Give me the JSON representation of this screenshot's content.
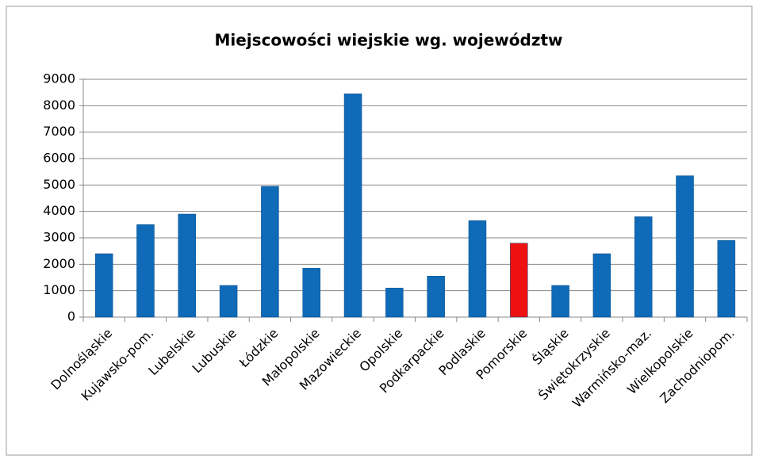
{
  "chart_data": {
    "type": "bar",
    "title": "Miejscowości wiejskie wg. województw",
    "categories": [
      "Dolnośląskie",
      "Kujawsko-pom.",
      "Lubelskie",
      "Lubuskie",
      "Łódzkie",
      "Małopolskie",
      "Mazowieckie",
      "Opolskie",
      "Podkarpackie",
      "Podlaskie",
      "Pomorskie",
      "Śląskie",
      "Świętokrzyskie",
      "Warmińsko-maz.",
      "Wielkopolskie",
      "Zachodniopom."
    ],
    "values": [
      2400,
      3500,
      3900,
      1200,
      4950,
      1850,
      8450,
      1100,
      1550,
      3650,
      2800,
      1200,
      2400,
      3800,
      5350,
      2900
    ],
    "colors": [
      "#0f6ab8",
      "#0f6ab8",
      "#0f6ab8",
      "#0f6ab8",
      "#0f6ab8",
      "#0f6ab8",
      "#0f6ab8",
      "#0f6ab8",
      "#0f6ab8",
      "#0f6ab8",
      "#ee1111",
      "#0f6ab8",
      "#0f6ab8",
      "#0f6ab8",
      "#0f6ab8",
      "#0f6ab8"
    ],
    "ylim": [
      0,
      9000
    ],
    "yticks": [
      0,
      1000,
      2000,
      3000,
      4000,
      5000,
      6000,
      7000,
      8000,
      9000
    ],
    "grid": true
  }
}
